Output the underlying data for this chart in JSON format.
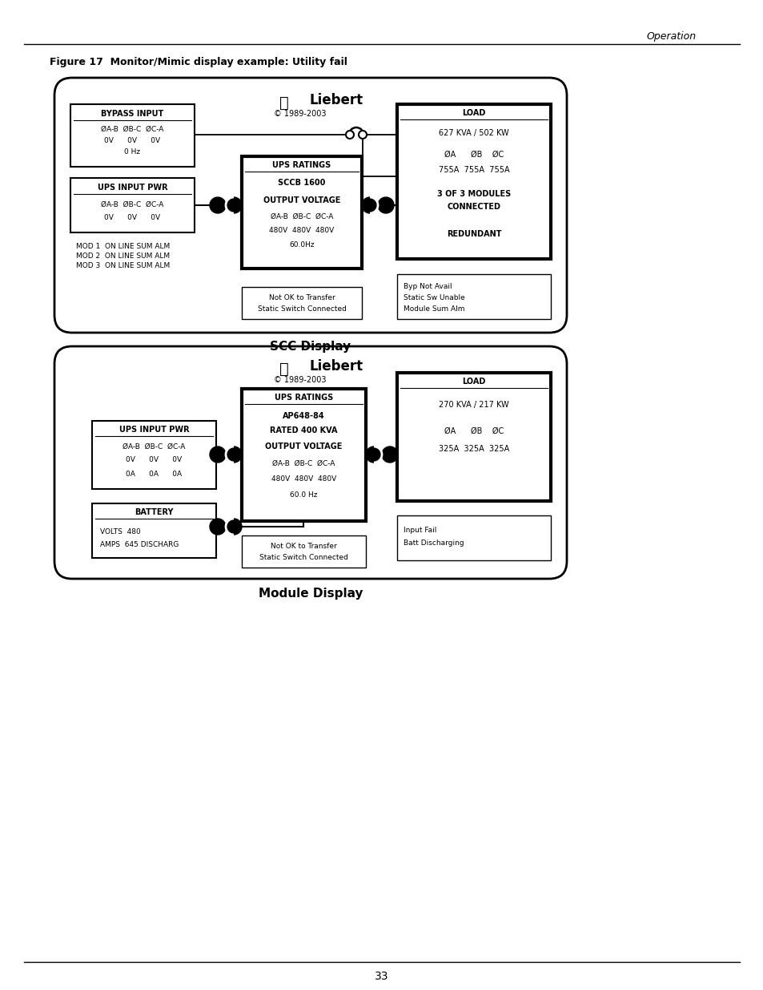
{
  "page_header": "Operation",
  "figure_title": "Figure 17  Monitor/Mimic display example: Utility fail",
  "page_number": "33",
  "scc_display_label": "SCC Display",
  "module_display_label": "Module Display",
  "copyright": "© 1989-2003",
  "scc": {
    "bypass_input": {
      "title": "BYPASS INPUT",
      "line1": "ØA-B  ØB-C  ØC-A",
      "line2": "0V      0V      0V",
      "line3": "0 Hz"
    },
    "ups_input_pwr": {
      "title": "UPS INPUT PWR",
      "line1": "ØA-B  ØB-C  ØC-A",
      "line2": "0V      0V      0V"
    },
    "mod_status": {
      "line1": "MOD 1  ON LINE SUM ALM",
      "line2": "MOD 2  ON LINE SUM ALM",
      "line3": "MOD 3  ON LINE SUM ALM"
    },
    "ups_ratings": {
      "title": "UPS RATINGS",
      "line1": "SCCB 1600",
      "line2": "OUTPUT VOLTAGE",
      "line3": "ØA-B  ØB-C  ØC-A",
      "line4": "480V  480V  480V",
      "line5": "60.0Hz"
    },
    "not_ok": {
      "line1": "Not OK to Transfer",
      "line2": "Static Switch Connected"
    },
    "load": {
      "title": "LOAD",
      "line1": "627 KVA / 502 KW",
      "line2": "ØA      ØB    ØC",
      "line3": "755A  755A  755A",
      "line4": "3 OF 3 MODULES",
      "line5": "CONNECTED",
      "line6": "REDUNDANT"
    },
    "alarms": {
      "line1": "Byp Not Avail",
      "line2": "Static Sw Unable",
      "line3": "Module Sum Alm"
    }
  },
  "module": {
    "ups_input_pwr": {
      "title": "UPS INPUT PWR",
      "line1": "ØA-B  ØB-C  ØC-A",
      "line2": "0V      0V      0V",
      "line3": "0A      0A      0A"
    },
    "battery": {
      "title": "BATTERY",
      "line1": "VOLTS  480",
      "line2": "AMPS  645 DISCHARG"
    },
    "ups_ratings": {
      "title": "UPS RATINGS",
      "line1": "AP648-84",
      "line2": "RATED 400 KVA",
      "line3": "OUTPUT VOLTAGE",
      "line4": "ØA-B  ØB-C  ØC-A",
      "line5": "480V  480V  480V",
      "line6": "60.0 Hz"
    },
    "not_ok": {
      "line1": "Not OK to Transfer",
      "line2": "Static Switch Connected"
    },
    "load": {
      "title": "LOAD",
      "line1": "270 KVA / 217 KW",
      "line2": "ØA      ØB    ØC",
      "line3": "325A  325A  325A"
    },
    "alarms": {
      "line1": "Input Fail",
      "line2": "Batt Discharging"
    }
  }
}
